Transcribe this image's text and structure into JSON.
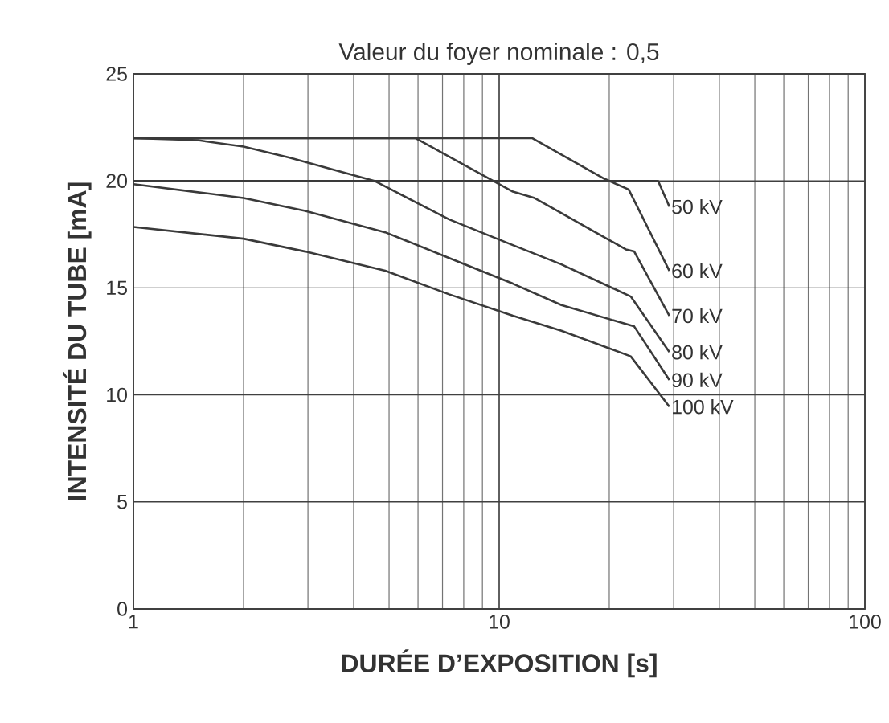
{
  "chart_data": {
    "type": "line",
    "title": "Valeur du foyer nominale : 0,5",
    "xlabel": "DURÉE D’EXPOSITION [s]",
    "ylabel": "INTENSITÉ DU TUBE [mA]",
    "log": "x",
    "xlim": [
      1,
      100
    ],
    "xticks": [
      1,
      10,
      100
    ],
    "ylim": [
      0,
      25
    ],
    "yticks": [
      0,
      5,
      10,
      15,
      20,
      25
    ],
    "grid": true,
    "marker": "none",
    "line_style": "solid",
    "series": [
      {
        "name": "50 kV",
        "color": "#3a3a3a",
        "x": [
          1,
          27.2,
          29.2
        ],
        "values": [
          20,
          20,
          18.8
        ]
      },
      {
        "name": "60 kV",
        "color": "#3a3a3a",
        "x": [
          1,
          12.3,
          19.4,
          22.6,
          29.2
        ],
        "values": [
          22,
          22,
          20.1,
          19.6,
          15.8
        ]
      },
      {
        "name": "70 kV",
        "color": "#3a3a3a",
        "x": [
          1,
          5.9,
          10.9,
          12.5,
          22.2,
          23.4,
          29.2
        ],
        "values": [
          22,
          22,
          19.5,
          19.2,
          16.8,
          16.7,
          13.7
        ]
      },
      {
        "name": "80 kV",
        "color": "#3a3a3a",
        "x": [
          1,
          1.5,
          2.0,
          2.66,
          4.56,
          7.3,
          10.9,
          14.8,
          22.9,
          29.2
        ],
        "values": [
          22,
          21.9,
          21.6,
          21.1,
          20.0,
          18.2,
          17.0,
          16.1,
          14.6,
          12.0
        ]
      },
      {
        "name": "90 kV",
        "color": "#3a3a3a",
        "x": [
          1,
          2.0,
          2.95,
          4.88,
          7.8,
          10.9,
          14.8,
          23.4,
          29.2
        ],
        "values": [
          19.85,
          19.2,
          18.6,
          17.6,
          16.2,
          15.2,
          14.2,
          13.2,
          10.7
        ]
      },
      {
        "name": "100 kV",
        "color": "#3a3a3a",
        "x": [
          1,
          2.0,
          2.95,
          4.88,
          7.3,
          10.9,
          14.8,
          22.9,
          29.2
        ],
        "values": [
          17.85,
          17.3,
          16.7,
          15.8,
          14.7,
          13.7,
          13.0,
          11.8,
          9.45
        ]
      }
    ]
  }
}
